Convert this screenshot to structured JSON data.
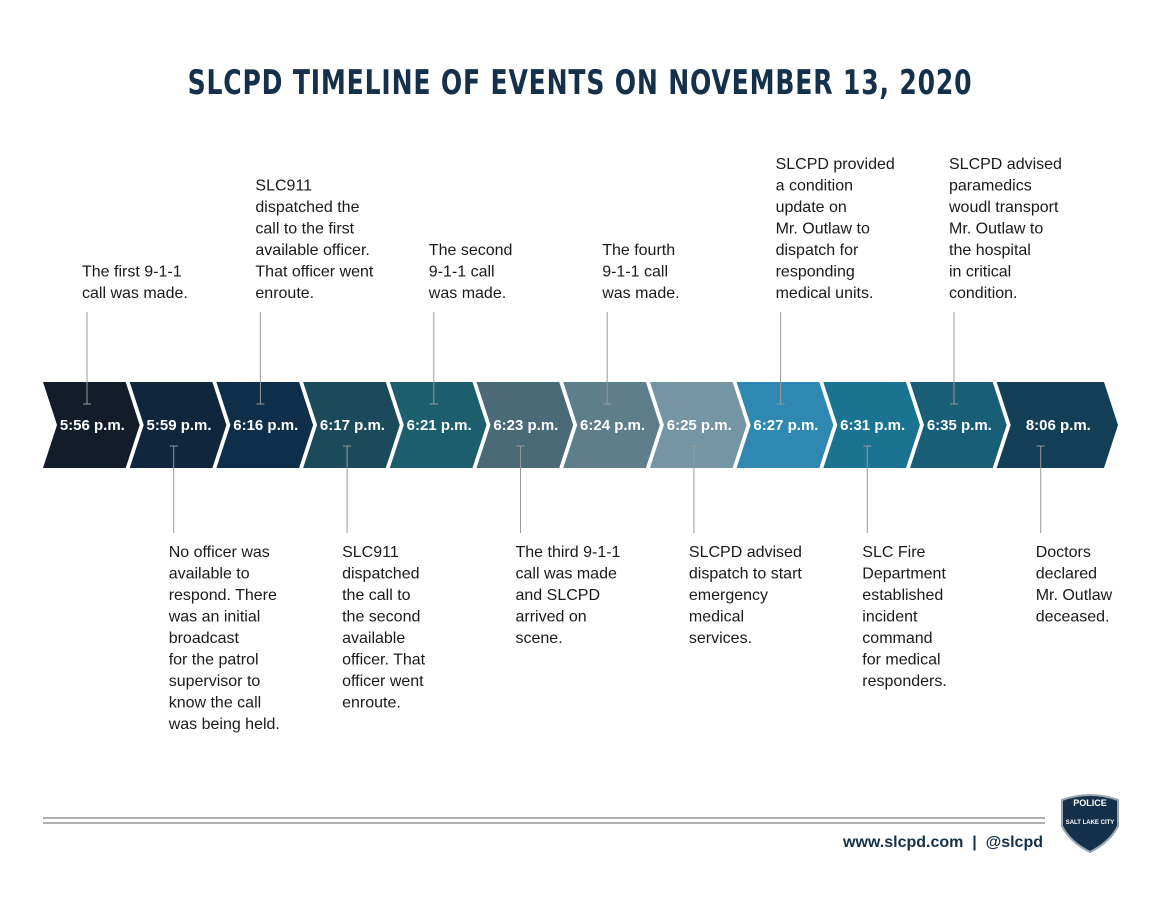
{
  "title": "SLCPD TIMELINE OF EVENTS ON NOVEMBER 13, 2020",
  "events": [
    {
      "time": "5:56 p.m.",
      "color": "#121c2b",
      "lines": [
        "The first 9-1-1",
        "call was made."
      ]
    },
    {
      "time": "5:59 p.m.",
      "color": "#10263d",
      "lines": [
        "No officer was",
        "available to",
        "respond. There",
        "was an initial",
        "broadcast",
        "for the patrol",
        "supervisor to",
        "know the call",
        "was being held."
      ]
    },
    {
      "time": "6:16 p.m.",
      "color": "#0f2e4a",
      "lines": [
        "SLC911",
        "dispatched the",
        "call to the first",
        "available officer.",
        "That officer went",
        "enroute."
      ]
    },
    {
      "time": "6:17 p.m.",
      "color": "#1b4b5a",
      "lines": [
        "SLC911",
        "dispatched",
        "the call to",
        "the second",
        "available",
        "officer. That",
        "officer went",
        "enroute."
      ]
    },
    {
      "time": "6:21 p.m.",
      "color": "#1d5e6c",
      "lines": [
        "The second",
        "9-1-1 call",
        "was made."
      ]
    },
    {
      "time": "6:23 p.m.",
      "color": "#4b6a78",
      "lines": [
        "The third 9-1-1",
        "call was made",
        "and SLCPD",
        "arrived on",
        "scene."
      ]
    },
    {
      "time": "6:24 p.m.",
      "color": "#5f7e8c",
      "lines": [
        "The fourth",
        "9-1-1 call",
        "was made."
      ]
    },
    {
      "time": "6:25 p.m.",
      "color": "#7594a4",
      "lines": [
        "SLCPD advised",
        "dispatch to start",
        "emergency",
        "medical",
        "services."
      ]
    },
    {
      "time": "6:27 p.m.",
      "color": "#2f88b2",
      "lines": [
        "SLCPD provided",
        "a condition",
        "update on",
        "Mr. Outlaw to",
        "dispatch for",
        "responding",
        "medical units."
      ]
    },
    {
      "time": "6:31 p.m.",
      "color": "#1a7390",
      "lines": [
        "SLC Fire",
        "Department",
        "established",
        "incident",
        "command",
        "for medical",
        "responders."
      ]
    },
    {
      "time": "6:35 p.m.",
      "color": "#175e76",
      "lines": [
        "SLCPD advised",
        "paramedics",
        "woudl transport",
        "Mr. Outlaw to",
        "the hospital",
        "in critical",
        "condition."
      ]
    },
    {
      "time": "8:06 p.m.",
      "color": "#123f55",
      "lines": [
        "Doctors",
        "declared",
        "Mr. Outlaw",
        "deceased."
      ]
    }
  ],
  "footer": {
    "text": "www.slcpd.com  |  @slcpd",
    "logo_top": "POLICE",
    "logo_bottom": "SALT LAKE CITY"
  }
}
